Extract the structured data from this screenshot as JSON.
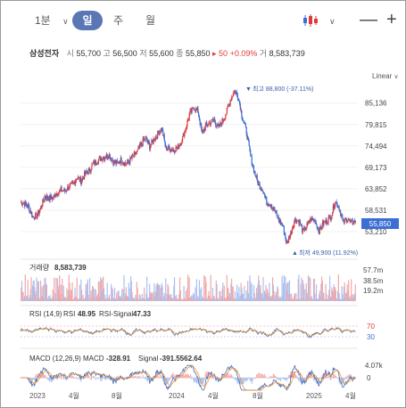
{
  "toolbar": {
    "interval": "1분",
    "tabs": [
      "일",
      "주",
      "월"
    ],
    "active_tab": 0,
    "chart_type_icon": "candlestick-icon",
    "minimize_symbol": "—",
    "add_symbol": "+"
  },
  "quote": {
    "name": "삼성전자",
    "open_label": "시",
    "open": "55,700",
    "high_label": "고",
    "high": "56,500",
    "low_label": "저",
    "low": "55,600",
    "close_label": "종",
    "close": "55,850",
    "change": "▸ 50",
    "change_pct": "+0.09%",
    "volume_label": "거",
    "volume": "8,583,739"
  },
  "scale_mode": "Linear",
  "colors": {
    "up": "#e03b3b",
    "down": "#3b6fd4",
    "rsi": "#4a6fb5",
    "signal": "#f0922b",
    "accent": "#5a76b4"
  },
  "chart_data": [
    {
      "type": "candlestick",
      "title": "",
      "y_ticks": [
        "85,136",
        "79,815",
        "74,494",
        "69,173",
        "63,852",
        "58,531",
        "53,210"
      ],
      "y_tick_values": [
        85136,
        79815,
        74494,
        69173,
        63852,
        58531,
        53210
      ],
      "current_price_label": "55,850",
      "current_price": 55850,
      "max_annotation": "최고 88,800 (-37.11%)",
      "min_annotation": "최저 49,900 (11.92%)",
      "x_labels": [
        "2023",
        "4월",
        "8월",
        "2024",
        "4월",
        "8월",
        "2025",
        "4월"
      ],
      "series_close": [
        60500,
        60200,
        59300,
        56900,
        57100,
        59000,
        62000,
        61500,
        61600,
        62800,
        63500,
        63300,
        64300,
        65000,
        66800,
        65700,
        67500,
        68300,
        70000,
        70800,
        71500,
        71900,
        72300,
        70500,
        70200,
        71100,
        70000,
        70800,
        72000,
        73100,
        75000,
        76500,
        74400,
        76000,
        77500,
        78900,
        74000,
        73800,
        73500,
        74100,
        76000,
        79200,
        82500,
        84000,
        83000,
        77500,
        79600,
        80300,
        81000,
        79000,
        80600,
        82700,
        85900,
        88200,
        86600,
        81500,
        78000,
        72000,
        68000,
        64800,
        63800,
        60500,
        60000,
        58500,
        56000,
        54700,
        50100,
        53000,
        56100,
        55900,
        53300,
        54600,
        56300,
        55900,
        53400,
        55100,
        56000,
        57000,
        60900,
        59000,
        55500,
        56400,
        55300,
        55850
      ]
    },
    {
      "type": "bar",
      "title": "거래량",
      "value_label": "8,583,739",
      "y_ticks": [
        "57.7m",
        "38.5m",
        "19.2m"
      ],
      "y_tick_values": [
        57.7,
        38.5,
        19.2
      ]
    },
    {
      "type": "line",
      "title": "RSI (14,9)",
      "series": [
        {
          "name": "RSI",
          "last": "48.95"
        },
        {
          "name": "RSI-Signal",
          "last": "47.33"
        }
      ],
      "y_ticks": [
        "70",
        "30"
      ],
      "y_tick_values": [
        70,
        30
      ]
    },
    {
      "type": "line",
      "title": "MACD (12,26,9)",
      "series": [
        {
          "name": "MACD",
          "last": "-328.91"
        },
        {
          "name": "Signal",
          "last": "-391.5562.64"
        }
      ],
      "y_ticks": [
        "4.07k",
        "0"
      ],
      "y_tick_values": [
        4070,
        0
      ]
    }
  ]
}
